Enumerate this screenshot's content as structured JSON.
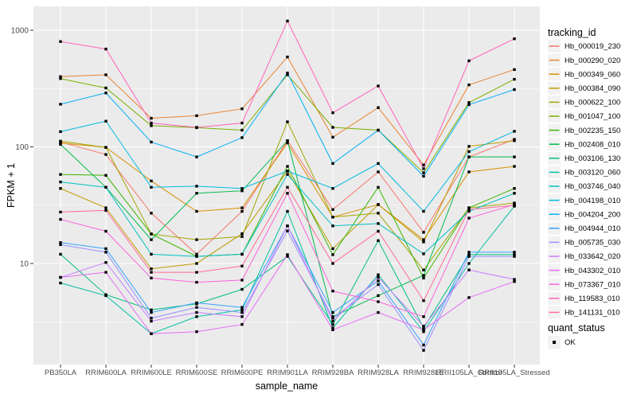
{
  "figure": {
    "axes": {
      "y_title": "FPKM + 1",
      "x_title": "sample_name",
      "y_tick_labels": [
        "1000",
        "100",
        "10"
      ]
    },
    "legend": {
      "tracking_title": "tracking_id",
      "quant_title": "quant_status",
      "quant_items": [
        {
          "label": "OK"
        }
      ]
    }
  },
  "colors": {
    "panel_bg": "#EBEBEB",
    "grid": "#FFFFFF",
    "tick_text": "#4D4D4D",
    "marker": "#000000",
    "legend_key_bg": "#F2F2F2",
    "page_bg": "#FFFFFF"
  },
  "chart_data": {
    "type": "line",
    "title": "",
    "xlabel": "sample_name",
    "ylabel": "FPKM + 1",
    "y_scale": "log10",
    "y_ticks": [
      10,
      100,
      1000
    ],
    "ylim": [
      1.35,
      1600
    ],
    "grid": "white major gridlines at ticks, thin minor gridlines at half-decades, gray panel",
    "legend_position": "right",
    "marker": "small black square (quant_status = OK)",
    "x_categories": [
      "PB350LA",
      "RRIM600LA",
      "RRIM600LE",
      "RRIM600SE",
      "RRIM600PE",
      "RRIM901LA",
      "RRIM928BA",
      "RRIM928LA",
      "RRIM928LE",
      "RRII105LA_Control",
      "RRII105LA_Stressed"
    ],
    "series": [
      {
        "name": "Hb_000019_230",
        "color": "#F8766D",
        "values": [
          110,
          86,
          27,
          12,
          28,
          113,
          29,
          61,
          18.5,
          82,
          116
        ]
      },
      {
        "name": "Hb_000290_020",
        "color": "#EA8331",
        "values": [
          400,
          415,
          176,
          185,
          212,
          590,
          121,
          217,
          70,
          340,
          460
        ]
      },
      {
        "name": "Hb_000349_060",
        "color": "#D89000",
        "values": [
          108,
          99,
          51,
          28,
          30,
          108,
          25,
          32,
          16,
          61,
          68
        ]
      },
      {
        "name": "Hb_000384_090",
        "color": "#C09B00",
        "values": [
          44,
          30,
          9,
          10,
          18,
          62,
          13.4,
          32,
          15.3,
          101,
          113
        ]
      },
      {
        "name": "Hb_000622_100",
        "color": "#A3A500",
        "values": [
          112,
          99,
          17.9,
          16,
          17,
          164,
          25,
          27,
          8.8,
          30,
          33
        ]
      },
      {
        "name": "Hb_001047_100",
        "color": "#7CAE00",
        "values": [
          385,
          320,
          152,
          146,
          139,
          415,
          147,
          139,
          60,
          240,
          380
        ]
      },
      {
        "name": "Hb_002235_150",
        "color": "#39B600",
        "values": [
          58,
          57,
          17.9,
          11.5,
          12,
          68,
          11.9,
          45,
          7.5,
          30,
          44
        ]
      },
      {
        "name": "Hb_002408_010",
        "color": "#00BB4E",
        "values": [
          105,
          45,
          16,
          40,
          42,
          113,
          3.5,
          5.3,
          7.9,
          82,
          82
        ]
      },
      {
        "name": "Hb_003106_130",
        "color": "#00BF7D",
        "values": [
          12,
          5.4,
          4.0,
          4.5,
          6.0,
          11.5,
          3.0,
          15.7,
          2.8,
          11.9,
          11.9
        ]
      },
      {
        "name": "Hb_003120_060",
        "color": "#00C1A3",
        "values": [
          6.8,
          5.3,
          2.5,
          3.5,
          4.0,
          28,
          2.8,
          8.0,
          2.6,
          10,
          31
        ]
      },
      {
        "name": "Hb_003746_040",
        "color": "#00BFC4",
        "values": [
          50,
          45,
          12,
          11.5,
          12,
          58,
          21,
          22,
          12.1,
          28,
          40
        ]
      },
      {
        "name": "Hb_004198_010",
        "color": "#00BAE0",
        "values": [
          135,
          166,
          45,
          46,
          44,
          62,
          44,
          72,
          28,
          91,
          136
        ]
      },
      {
        "name": "Hb_004204_200",
        "color": "#00B0F6",
        "values": [
          232,
          290,
          110,
          82,
          120,
          430,
          72,
          139,
          56,
          230,
          310
        ]
      },
      {
        "name": "Hb_004944_010",
        "color": "#35A2FF",
        "values": [
          15.1,
          13.4,
          3.8,
          4.6,
          4.2,
          21,
          3.8,
          7.1,
          2.0,
          12.5,
          12.5
        ]
      },
      {
        "name": "Hb_005735_030",
        "color": "#9590FF",
        "values": [
          14.5,
          12.5,
          3.4,
          4.2,
          3.8,
          19,
          3.4,
          6.6,
          1.8,
          11.5,
          11.5
        ]
      },
      {
        "name": "Hb_033642_020",
        "color": "#C77CFF",
        "values": [
          7.6,
          10.2,
          3.2,
          3.8,
          3.5,
          21,
          3.2,
          7.6,
          2.9,
          8.8,
          7.3
        ]
      },
      {
        "name": "Hb_043302_010",
        "color": "#E76BF3",
        "values": [
          7.6,
          8.4,
          2.5,
          2.6,
          3.0,
          11.9,
          2.7,
          3.8,
          2.7,
          5.1,
          7.0
        ]
      },
      {
        "name": "Hb_073367_010",
        "color": "#FA62DB",
        "values": [
          23.9,
          18.9,
          7.5,
          6.9,
          7.2,
          40,
          5.8,
          4.7,
          3.5,
          24.5,
          32
        ]
      },
      {
        "name": "Hb_119583_010",
        "color": "#FF62BC",
        "values": [
          800,
          690,
          160,
          147,
          160,
          1200,
          196,
          333,
          65,
          547,
          845
        ]
      },
      {
        "name": "Hb_141131_010",
        "color": "#FF6A98",
        "values": [
          27.6,
          28.5,
          8.4,
          8.4,
          9.5,
          45,
          10,
          18.9,
          4.8,
          29,
          31.5
        ]
      }
    ]
  }
}
